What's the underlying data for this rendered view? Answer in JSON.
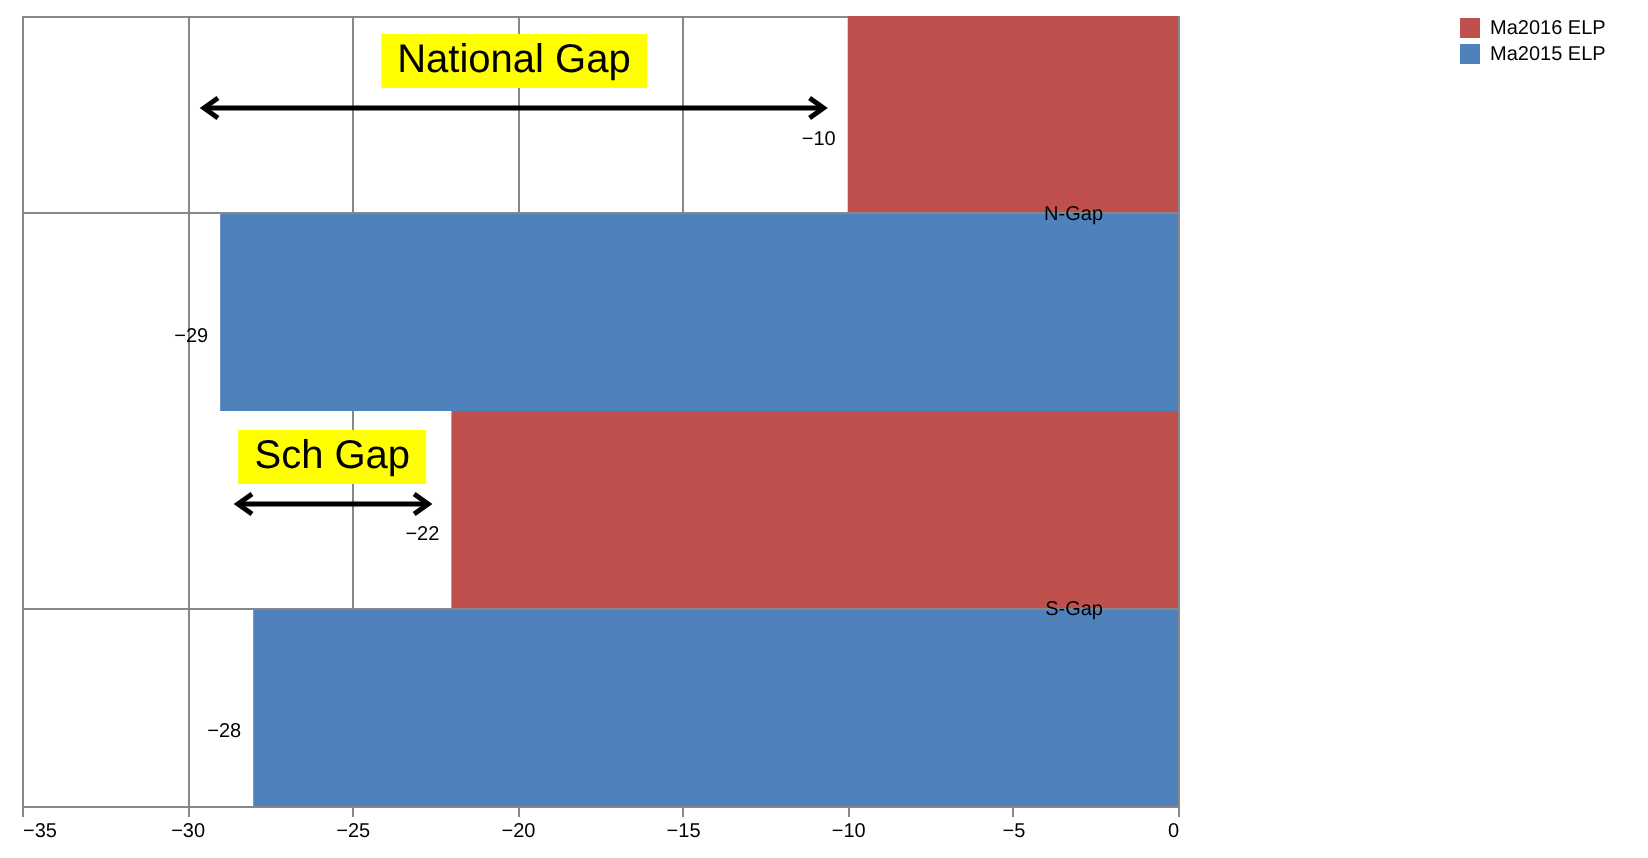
{
  "chart_data": {
    "type": "bar",
    "orientation": "horizontal",
    "categories": [
      "N-Gap",
      "S-Gap"
    ],
    "series": [
      {
        "name": "Ma2016 ELP",
        "color": "#c0504d",
        "values": [
          -10,
          -22
        ]
      },
      {
        "name": "Ma2015 ELP",
        "color": "#4f81bd",
        "values": [
          -29,
          -28
        ]
      }
    ],
    "xlim": [
      -35,
      0
    ],
    "xticks": [
      -35,
      -30,
      -25,
      -20,
      -15,
      -10,
      -5,
      0
    ],
    "grid": true,
    "legend": "right",
    "data_labels": true,
    "annotations": [
      "National Gap",
      "Sch Gap"
    ]
  }
}
